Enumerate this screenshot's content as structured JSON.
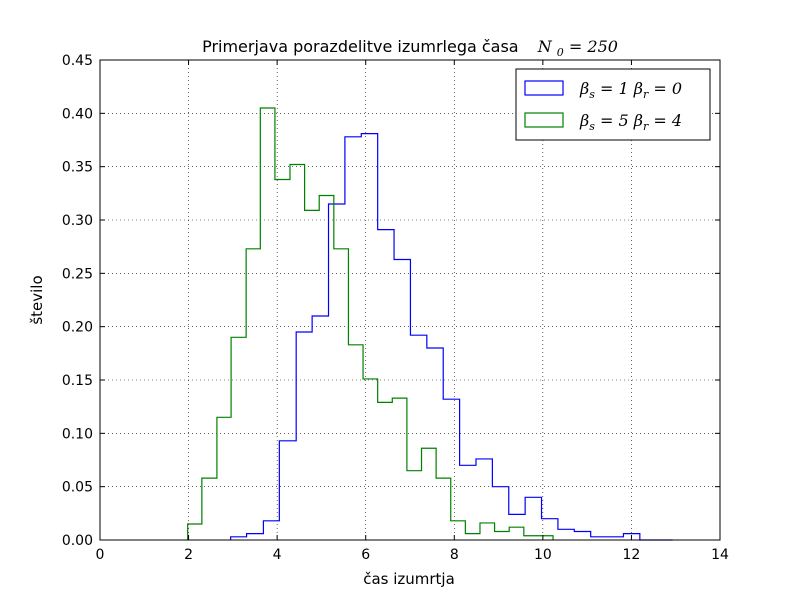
{
  "chart_data": {
    "type": "histogram-step",
    "title": "Primerjava porazdelitve izumrlega časa",
    "title_math": "N",
    "title_math_sub": "0",
    "title_math_rest": " = 250",
    "xlabel": "čas izumrtja",
    "ylabel": "število",
    "xlim": [
      0,
      14
    ],
    "ylim": [
      0,
      0.45
    ],
    "x_ticks": [
      "0",
      "2",
      "4",
      "6",
      "8",
      "10",
      "12",
      "14"
    ],
    "x_tick_values": [
      0,
      2,
      4,
      6,
      8,
      10,
      12,
      14
    ],
    "y_ticks": [
      "0.00",
      "0.05",
      "0.10",
      "0.15",
      "0.20",
      "0.25",
      "0.30",
      "0.35",
      "0.40",
      "0.45"
    ],
    "y_tick_values": [
      0,
      0.05,
      0.1,
      0.15,
      0.2,
      0.25,
      0.3,
      0.35,
      0.4,
      0.45
    ],
    "grid": true,
    "legend_position": "top-right",
    "series": [
      {
        "legend": [
          "β",
          "s",
          " = 1    ",
          "β",
          "r",
          " = 0"
        ],
        "color": "#0000ff",
        "bin_edges": [
          2.95,
          3.31,
          3.69,
          4.05,
          4.43,
          4.79,
          5.16,
          5.53,
          5.9,
          6.27,
          6.64,
          7.01,
          7.38,
          7.75,
          8.12,
          8.49,
          8.86,
          9.23,
          9.6,
          9.97,
          10.34,
          10.71,
          11.08,
          11.45,
          11.82,
          12.19,
          12.56,
          12.93
        ],
        "values": [
          0.003,
          0.006,
          0.018,
          0.093,
          0.195,
          0.21,
          0.315,
          0.378,
          0.381,
          0.291,
          0.263,
          0.192,
          0.18,
          0.132,
          0.07,
          0.076,
          0.05,
          0.024,
          0.04,
          0.02,
          0.01,
          0.008,
          0.003,
          0.003,
          0.006,
          0.0,
          0.0
        ]
      },
      {
        "legend": [
          "β",
          "s",
          " = 5    ",
          "β",
          "r",
          " = 4"
        ],
        "color": "#008000",
        "bin_edges": [
          1.98,
          2.3,
          2.64,
          2.96,
          3.3,
          3.62,
          3.95,
          4.29,
          4.62,
          4.95,
          5.28,
          5.61,
          5.94,
          6.27,
          6.6,
          6.93,
          7.26,
          7.59,
          7.92,
          8.25,
          8.58,
          8.91,
          9.24,
          9.57,
          9.9,
          10.23
        ],
        "values": [
          0.015,
          0.058,
          0.115,
          0.19,
          0.273,
          0.405,
          0.338,
          0.352,
          0.309,
          0.323,
          0.273,
          0.183,
          0.151,
          0.129,
          0.133,
          0.065,
          0.086,
          0.058,
          0.018,
          0.006,
          0.016,
          0.008,
          0.012,
          0.004,
          0.004
        ]
      }
    ]
  }
}
